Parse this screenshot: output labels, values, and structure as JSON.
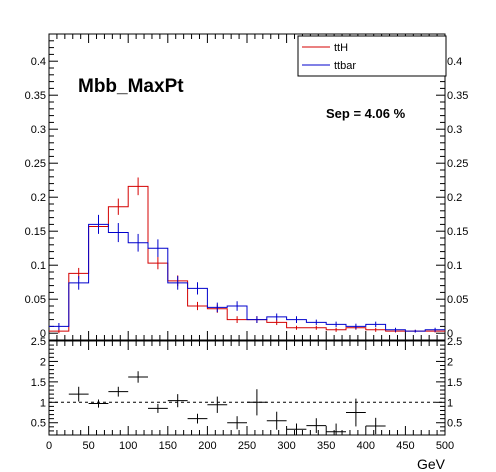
{
  "chart_data": [
    {
      "type": "histogram",
      "title": "Mbb_MaxPt",
      "annotation": "Sep = 4.06 %",
      "xlabel": "GeV",
      "ylabel": "",
      "xlim": [
        0,
        500
      ],
      "ylim": [
        -0.01,
        0.44
      ],
      "yticks": [
        "0",
        "0.05",
        "0.1",
        "0.15",
        "0.2",
        "0.25",
        "0.3",
        "0.35",
        "0.4"
      ],
      "legend_position": "top-right",
      "bin_edges": [
        0,
        25,
        50,
        75,
        100,
        125,
        150,
        175,
        200,
        225,
        250,
        275,
        300,
        325,
        350,
        375,
        400,
        425,
        450,
        475,
        500
      ],
      "series": [
        {
          "name": "ttH",
          "color": "#d40000",
          "values": [
            0.003,
            0.088,
            0.157,
            0.186,
            0.216,
            0.103,
            0.077,
            0.04,
            0.036,
            0.02,
            0.02,
            0.016,
            0.008,
            0.008,
            0.005,
            0.008,
            0.005,
            0.003,
            0.003,
            0.003
          ],
          "errors": [
            0.003,
            0.008,
            0.01,
            0.012,
            0.013,
            0.009,
            0.008,
            0.006,
            0.006,
            0.005,
            0.005,
            0.004,
            0.003,
            0.003,
            0.003,
            0.003,
            0.003,
            0.002,
            0.002,
            0.002
          ]
        },
        {
          "name": "ttbar",
          "color": "#0000cc",
          "values": [
            0.01,
            0.074,
            0.16,
            0.148,
            0.133,
            0.125,
            0.074,
            0.066,
            0.038,
            0.04,
            0.02,
            0.024,
            0.02,
            0.016,
            0.013,
            0.01,
            0.013,
            0.005,
            0.003,
            0.005
          ],
          "errors": [
            0.005,
            0.01,
            0.014,
            0.014,
            0.013,
            0.013,
            0.01,
            0.009,
            0.007,
            0.007,
            0.005,
            0.005,
            0.005,
            0.004,
            0.004,
            0.004,
            0.004,
            0.003,
            0.002,
            0.003
          ]
        }
      ]
    },
    {
      "type": "ratio",
      "xlabel": "GeV",
      "xlim": [
        0,
        500
      ],
      "ylim": [
        0.2,
        2.5
      ],
      "yticks": [
        "0.5",
        "1",
        "1.5",
        "2",
        "2.5"
      ],
      "xticks": [
        "0",
        "50",
        "100",
        "150",
        "200",
        "250",
        "300",
        "350",
        "400",
        "450",
        "500"
      ],
      "reference_line": 1,
      "values": [
        null,
        1.2,
        0.97,
        1.26,
        1.62,
        0.85,
        1.04,
        0.6,
        0.94,
        0.5,
        1.0,
        0.55,
        0.34,
        0.43,
        0.28,
        0.75,
        0.42,
        null,
        null,
        null
      ],
      "errors": [
        0,
        0.18,
        0.1,
        0.12,
        0.14,
        0.11,
        0.16,
        0.12,
        0.2,
        0.16,
        0.32,
        0.22,
        0.14,
        0.18,
        0.2,
        0.34,
        0.2,
        0,
        0,
        0
      ]
    }
  ]
}
